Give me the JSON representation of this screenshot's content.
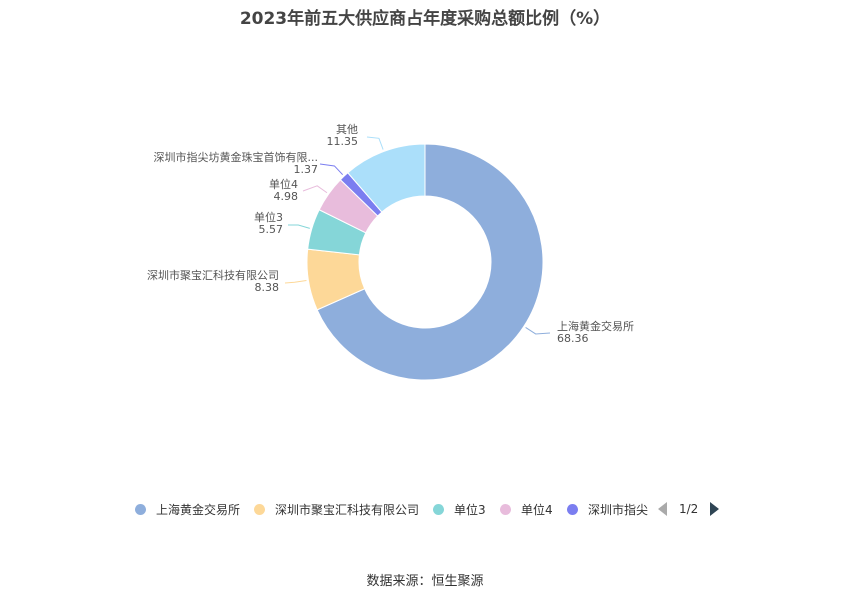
{
  "title": "2023年前五大供应商占年度采购总额比例（%）",
  "chart_data": {
    "type": "pie",
    "donut": true,
    "slices": [
      {
        "name": "上海黄金交易所",
        "label": "上海黄金交易所",
        "value": 68.36,
        "value_label": "68.36",
        "color": "#8eaedc"
      },
      {
        "name": "深圳市聚宝汇科技有限公司",
        "label": "深圳市聚宝汇科技有限公司",
        "value": 8.38,
        "value_label": "8.38",
        "color": "#fdd898"
      },
      {
        "name": "单位3",
        "label": "单位3",
        "value": 5.57,
        "value_label": "5.57",
        "color": "#85d6d8"
      },
      {
        "name": "单位4",
        "label": "单位4",
        "value": 4.98,
        "value_label": "4.98",
        "color": "#e8bcdc"
      },
      {
        "name": "深圳市指尖坊黄金珠宝首饰有限公司",
        "label": "深圳市指尖坊黄金珠宝首饰有限...",
        "value": 1.37,
        "value_label": "1.37",
        "color": "#7b7ef0"
      },
      {
        "name": "其他",
        "label": "其他",
        "value": 11.35,
        "value_label": "11.35",
        "color": "#abdffa"
      }
    ],
    "legend": {
      "placement": "bottom",
      "items": [
        "上海黄金交易所",
        "深圳市聚宝汇科技有限公司",
        "单位3",
        "单位4",
        "深圳市指尖"
      ],
      "page": "1/2"
    }
  },
  "source": "数据来源：恒生聚源"
}
